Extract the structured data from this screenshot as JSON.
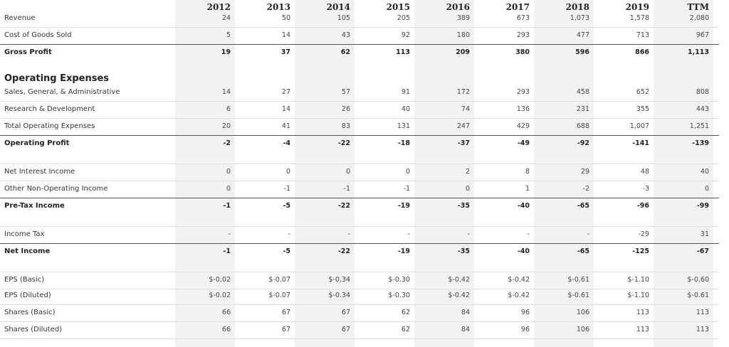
{
  "years": [
    "2012",
    "2013",
    "2014",
    "2015",
    "2016",
    "2017",
    "2018",
    "2019",
    "TTM"
  ],
  "sections": {
    "operating_expenses": "Operating Expenses"
  },
  "rows": [
    {
      "label": "Revenue",
      "values": [
        "24",
        "50",
        "105",
        "205",
        "389",
        "673",
        "1,073",
        "1,578",
        "2,080"
      ],
      "bold": false
    },
    {
      "label": "Cost of Goods Sold",
      "values": [
        "5",
        "14",
        "43",
        "92",
        "180",
        "293",
        "477",
        "713",
        "967"
      ],
      "bold": false
    },
    {
      "label": "Gross Profit",
      "values": [
        "19",
        "37",
        "62",
        "113",
        "209",
        "380",
        "596",
        "866",
        "1,113"
      ],
      "bold": true
    },
    {
      "label": "Sales, General, & Administrative",
      "values": [
        "14",
        "27",
        "57",
        "91",
        "172",
        "293",
        "458",
        "652",
        "808"
      ],
      "bold": false
    },
    {
      "label": "Research & Development",
      "values": [
        "6",
        "14",
        "26",
        "40",
        "74",
        "136",
        "231",
        "355",
        "443"
      ],
      "bold": false
    },
    {
      "label": "Total Operating Expenses",
      "values": [
        "20",
        "41",
        "83",
        "131",
        "247",
        "429",
        "688",
        "1,007",
        "1,251"
      ],
      "bold": false
    },
    {
      "label": "Operating Profit",
      "values": [
        "-2",
        "-4",
        "-22",
        "-18",
        "-37",
        "-49",
        "-92",
        "-141",
        "-139"
      ],
      "bold": true
    },
    {
      "label": "Net Interest Income",
      "values": [
        "0",
        "0",
        "0",
        "0",
        "2",
        "8",
        "29",
        "48",
        "40"
      ],
      "bold": false
    },
    {
      "label": "Other Non-Operating Income",
      "values": [
        "0",
        "-1",
        "-1",
        "-1",
        "0",
        "1",
        "-2",
        "-3",
        "0"
      ],
      "bold": false
    },
    {
      "label": "Pre-Tax Income",
      "values": [
        "-1",
        "-5",
        "-22",
        "-19",
        "-35",
        "-40",
        "-65",
        "-96",
        "-99"
      ],
      "bold": true
    },
    {
      "label": "Income Tax",
      "values": [
        "-",
        "-",
        "-",
        "-",
        "-",
        "-",
        "-",
        "-29",
        "31"
      ],
      "bold": false
    },
    {
      "label": "Net Income",
      "values": [
        "-1",
        "-5",
        "-22",
        "-19",
        "-35",
        "-40",
        "-65",
        "-125",
        "-67"
      ],
      "bold": true
    },
    {
      "label": "EPS (Basic)",
      "values": [
        "$-0.02",
        "$-0.07",
        "$-0.34",
        "$-0.30",
        "$-0.42",
        "$-0.42",
        "$-0.61",
        "$-1.10",
        "$-0.60"
      ],
      "bold": false
    },
    {
      "label": "EPS (Diluted)",
      "values": [
        "$-0.02",
        "$-0.07",
        "$-0.34",
        "$-0.30",
        "$-0.42",
        "$-0.42",
        "$-0.61",
        "$-1.10",
        "$-0.61"
      ],
      "bold": false
    },
    {
      "label": "Shares (Basic)",
      "values": [
        "66",
        "67",
        "67",
        "62",
        "84",
        "96",
        "106",
        "113",
        "113"
      ],
      "bold": false
    },
    {
      "label": "Shares (Diluted)",
      "values": [
        "66",
        "67",
        "67",
        "62",
        "84",
        "96",
        "106",
        "113",
        "113"
      ],
      "bold": false
    }
  ]
}
